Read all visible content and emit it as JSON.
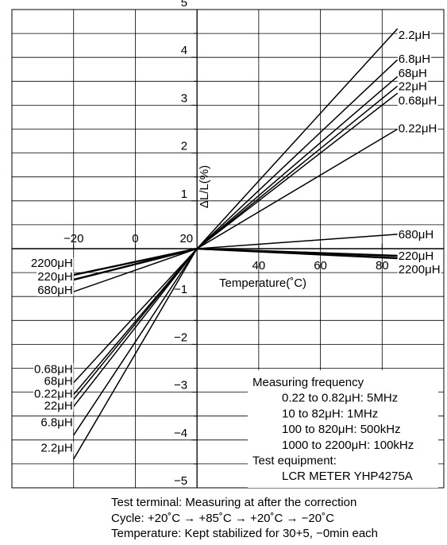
{
  "chart_data": {
    "type": "line",
    "title": "",
    "xlabel": "Temperature(˚C)",
    "ylabel": "ΔL/L(%)",
    "xlim": [
      -40,
      100
    ],
    "ylim": [
      -5,
      5
    ],
    "grid": true,
    "x_ticks": [
      "−20",
      "0",
      "20",
      "40",
      "60",
      "80"
    ],
    "y_ticks": [
      "5",
      "4",
      "3",
      "2",
      "1",
      "−1",
      "−2",
      "−3",
      "−4",
      "−5"
    ],
    "series": [
      {
        "name": "2.2μH",
        "x": [
          -20,
          20,
          85
        ],
        "y": [
          -4.4,
          0,
          4.6
        ],
        "width": 1.5
      },
      {
        "name": "6.8μH",
        "x": [
          -20,
          20,
          85
        ],
        "y": [
          -3.9,
          0,
          3.95
        ],
        "width": 1.5
      },
      {
        "name": "68μH",
        "x": [
          -20,
          20,
          85
        ],
        "y": [
          -3.05,
          0,
          3.6
        ],
        "width": 1.5
      },
      {
        "name": "22μH",
        "x": [
          -20,
          20,
          85
        ],
        "y": [
          -3.15,
          0,
          3.4
        ],
        "width": 1.5
      },
      {
        "name": "0.68μH",
        "x": [
          -20,
          20,
          85
        ],
        "y": [
          -2.8,
          0,
          3.25
        ],
        "width": 1.5
      },
      {
        "name": "0.22μH",
        "x": [
          -20,
          20,
          85
        ],
        "y": [
          -3.3,
          0,
          2.5
        ],
        "width": 1.5
      },
      {
        "name": "680μH",
        "x": [
          -20,
          20,
          85
        ],
        "y": [
          -0.9,
          0,
          0.3
        ],
        "width": 1.5
      },
      {
        "name": "220μH",
        "x": [
          -20,
          20,
          85
        ],
        "y": [
          -0.65,
          0,
          -0.15
        ],
        "width": 2.4
      },
      {
        "name": "2200μH",
        "x": [
          -20,
          20,
          85
        ],
        "y": [
          -0.55,
          0,
          -0.2
        ],
        "width": 2.4
      }
    ],
    "right_labels": [
      {
        "text": "2.2μH",
        "y": 4.45
      },
      {
        "text": "6.8μH",
        "y": 3.95
      },
      {
        "text": "68μH",
        "y": 3.65
      },
      {
        "text": "22μH",
        "y": 3.38
      },
      {
        "text": "0.68μH",
        "y": 3.08
      },
      {
        "text": "0.22μH",
        "y": 2.5
      },
      {
        "text": "680μH",
        "y": 0.28
      },
      {
        "text": "220μH",
        "y": -0.17
      },
      {
        "text": "2200μH",
        "y": -0.45
      }
    ],
    "left_labels": [
      {
        "text": "2200μH",
        "y": -0.32
      },
      {
        "text": "220μH",
        "y": -0.6
      },
      {
        "text": "680μH",
        "y": -0.88
      },
      {
        "text": "0.68μH",
        "y": -2.53
      },
      {
        "text": "68μH",
        "y": -2.78
      },
      {
        "text": "0.22μH",
        "y": -3.05
      },
      {
        "text": "22μH",
        "y": -3.3
      },
      {
        "text": "6.8μH",
        "y": -3.65
      },
      {
        "text": "2.2μH",
        "y": -4.18
      }
    ]
  },
  "legend_box": {
    "lines": [
      "Measuring frequency",
      "0.22 to 0.82μH: 5MHz",
      "10 to 82μH: 1MHz",
      "100 to 820μH: 500kHz",
      "1000 to 2200μH: 100kHz",
      "Test equipment:",
      "LCR METER YHP4275A"
    ],
    "indent": [
      false,
      true,
      true,
      true,
      true,
      false,
      true
    ]
  },
  "footnotes": [
    "Test terminal: Measuring at after the correction",
    "Cycle: +20˚C → +85˚C → +20˚C → −20˚C",
    "Temperature: Kept stabilized for 30+5, −0min each"
  ]
}
